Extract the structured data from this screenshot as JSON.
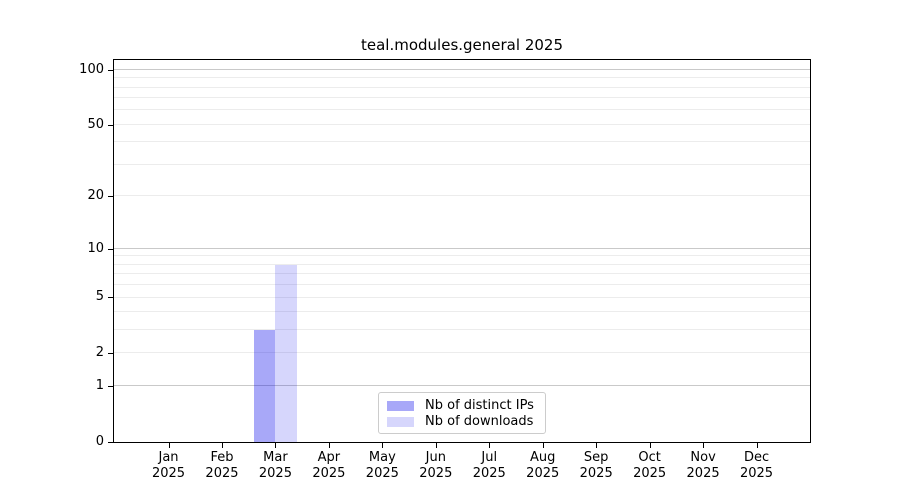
{
  "chart_data": {
    "type": "bar",
    "title": "teal.modules.general 2025",
    "categories": [
      "Jan",
      "Feb",
      "Mar",
      "Apr",
      "May",
      "Jun",
      "Jul",
      "Aug",
      "Sep",
      "Oct",
      "Nov",
      "Dec"
    ],
    "category_year_label": "2025",
    "series": [
      {
        "name": "Nb of distinct IPs",
        "color": "rgba(0,0,235,0.34)",
        "values": [
          0,
          0,
          3,
          0,
          0,
          0,
          0,
          0,
          0,
          0,
          0,
          0
        ]
      },
      {
        "name": "Nb of downloads",
        "color": "rgba(0,0,235,0.16)",
        "values": [
          0,
          0,
          8,
          0,
          0,
          0,
          0,
          0,
          0,
          0,
          0,
          0
        ]
      }
    ],
    "y_ticks": [
      0,
      1,
      2,
      5,
      10,
      20,
      50,
      100
    ],
    "major_gridlines": [
      1,
      10,
      100
    ],
    "minor_gridlines": [
      2,
      3,
      4,
      5,
      6,
      7,
      8,
      9,
      20,
      30,
      40,
      50,
      60,
      70,
      80,
      90
    ],
    "scale": "log1p",
    "ymax": 113,
    "grid": true,
    "legend_position": "lower center",
    "colors": {
      "axis": "#000000",
      "major_grid": "#c9c9c9",
      "minor_grid": "#ececec",
      "legend_border": "#cccccc",
      "text": "#000000"
    }
  }
}
